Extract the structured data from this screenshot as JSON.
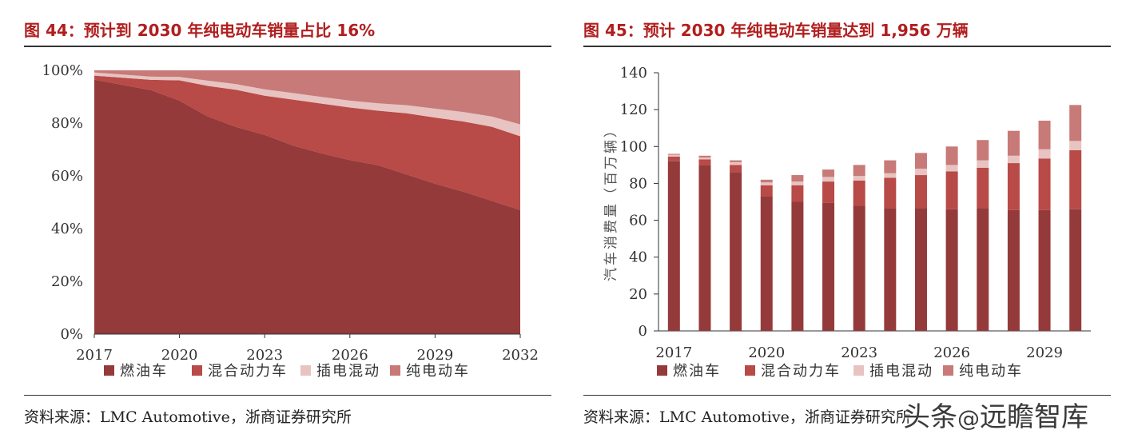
{
  "left": {
    "title": "图 44：预计到 2030 年纯电动车销量占比 16%",
    "source": "资料来源：LMC Automotive，浙商证券研究所"
  },
  "right": {
    "title": "图 45：预计 2030 年纯电动车销量达到 1,956 万辆",
    "source": "资料来源：LMC Automotive，浙商证券研究所"
  },
  "watermark": {
    "text": "头条",
    "symbol": "@",
    "name": "远瞻智库"
  },
  "colors": {
    "ice": "#953a3a",
    "hybrid": "#b84a47",
    "phev": "#e7c3c1",
    "bev": "#c77a77"
  },
  "chart_data": [
    {
      "type": "area",
      "stacked": true,
      "percent": true,
      "x": [
        2017,
        2018,
        2019,
        2020,
        2021,
        2022,
        2023,
        2024,
        2025,
        2026,
        2027,
        2028,
        2029,
        2030,
        2031,
        2032
      ],
      "xticks": [
        "2017",
        "2020",
        "2023",
        "2026",
        "2029",
        "2032"
      ],
      "yticks": [
        "0%",
        "20%",
        "40%",
        "60%",
        "80%",
        "100%"
      ],
      "ylim": [
        0,
        100
      ],
      "series": [
        {
          "name": "燃油车",
          "values": [
            96.5,
            94.5,
            92.5,
            88.5,
            82.5,
            78.5,
            75.5,
            71.5,
            68.5,
            66,
            64,
            60.5,
            57,
            54,
            50.5,
            47
          ]
        },
        {
          "name": "混合动力车",
          "values": [
            1.5,
            2.7,
            3.9,
            7.7,
            11.6,
            14.1,
            14.9,
            17.4,
            18.9,
            19.9,
            20.7,
            23.2,
            25.1,
            26.6,
            28.1,
            28
          ]
        },
        {
          "name": "插电混动",
          "values": [
            1.2,
            1.2,
            1.2,
            1.3,
            2,
            2.2,
            2.4,
            2.5,
            2.5,
            2.6,
            2.8,
            3.1,
            3.4,
            3.6,
            3.9,
            4.5
          ]
        },
        {
          "name": "纯电动车",
          "values": [
            0.8,
            1.6,
            2.4,
            2.5,
            3.9,
            5.2,
            7.2,
            8.6,
            10.1,
            11.5,
            12.5,
            13.2,
            14.5,
            15.8,
            17.5,
            20.5
          ]
        }
      ],
      "legend_position": "bottom"
    },
    {
      "type": "bar",
      "stacked": true,
      "categories": [
        "2017",
        "2018",
        "2019",
        "2020",
        "2021",
        "2022",
        "2023",
        "2024",
        "2025",
        "2026",
        "2027",
        "2028",
        "2029",
        "2030"
      ],
      "xticks": [
        "2017",
        "2020",
        "2023",
        "2026",
        "2029"
      ],
      "yticks": [
        "0",
        "20",
        "40",
        "60",
        "80",
        "100",
        "120",
        "140"
      ],
      "ylim": [
        0,
        140
      ],
      "ylabel": "汽车消费量（百万辆）",
      "series": [
        {
          "name": "燃油车",
          "values": [
            92,
            90,
            86,
            73,
            70,
            69.5,
            68,
            66.5,
            66.5,
            66,
            66.5,
            65.5,
            65.5,
            66
          ]
        },
        {
          "name": "混合动力车",
          "values": [
            2.5,
            3,
            4,
            6,
            9,
            11.5,
            13.5,
            16.5,
            18,
            20.5,
            22,
            25.5,
            28,
            32
          ]
        },
        {
          "name": "插电混动",
          "values": [
            1,
            1,
            1.5,
            1.5,
            2,
            2.5,
            2.5,
            2.5,
            3.5,
            3.5,
            4,
            4,
            5,
            5
          ]
        },
        {
          "name": "纯电动车",
          "values": [
            0.5,
            1,
            1,
            1.5,
            3.5,
            4,
            6,
            7,
            8.5,
            10,
            11,
            13.5,
            15.5,
            19.5
          ]
        }
      ],
      "legend_position": "bottom"
    }
  ]
}
